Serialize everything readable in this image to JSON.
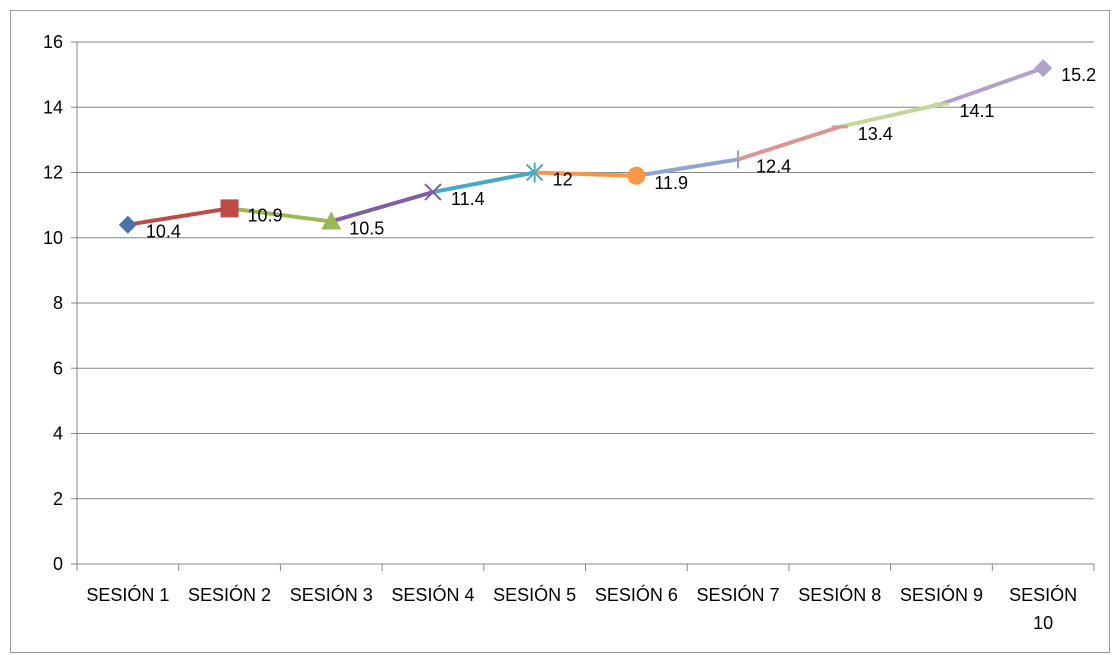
{
  "chart_data": {
    "type": "line",
    "categories": [
      "SESIÓN 1",
      "SESIÓN 2",
      "SESIÓN 3",
      "SESIÓN 4",
      "SESIÓN 5",
      "SESIÓN 6",
      "SESIÓN 7",
      "SESIÓN 8",
      "SESIÓN 9",
      "SESIÓN 10"
    ],
    "category_label_lines": [
      [
        "SESIÓN 1"
      ],
      [
        "SESIÓN 2"
      ],
      [
        "SESIÓN 3"
      ],
      [
        "SESIÓN 4"
      ],
      [
        "SESIÓN 5"
      ],
      [
        "SESIÓN 6"
      ],
      [
        "SESIÓN 7"
      ],
      [
        "SESIÓN 8"
      ],
      [
        "SESIÓN 9"
      ],
      [
        "SESIÓN",
        "10"
      ]
    ],
    "values": [
      10.4,
      10.9,
      10.5,
      11.4,
      12,
      11.9,
      12.4,
      13.4,
      14.1,
      15.2
    ],
    "data_labels": [
      "10.4",
      "10.9",
      "10.5",
      "11.4",
      "12",
      "11.9",
      "12.4",
      "13.4",
      "14.1",
      "15.2"
    ],
    "point_colors": [
      "#4a72a8",
      "#be4b48",
      "#98b954",
      "#7d60a0",
      "#46aac5",
      "#f79646",
      "#8ea5d0",
      "#d99694",
      "#c3d69b",
      "#b3a2c7"
    ],
    "point_markers": [
      "diamond",
      "square",
      "triangle",
      "x",
      "star",
      "circle",
      "plus",
      "dash",
      "dash",
      "diamond"
    ],
    "ylim": [
      0,
      16
    ],
    "y_ticks": [
      0,
      2,
      4,
      6,
      8,
      10,
      12,
      14,
      16
    ],
    "grid": true,
    "legend": "none",
    "title": "",
    "xlabel": "",
    "ylabel": ""
  }
}
